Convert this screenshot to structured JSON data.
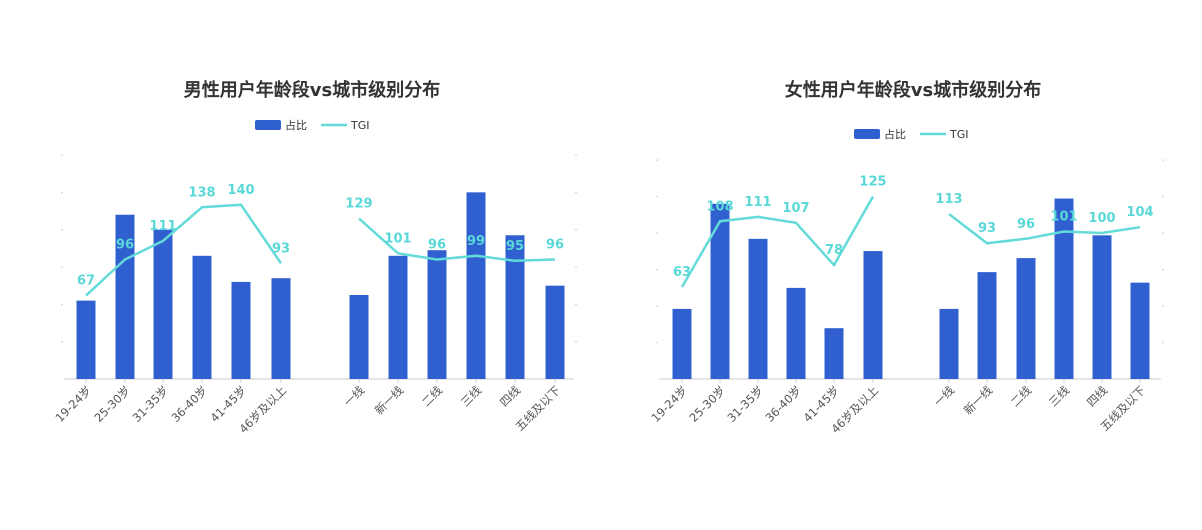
{
  "colors": {
    "bar": "#3060d0",
    "line": "#62dbd9",
    "axis": "#cccccc",
    "label": "#5ad8d8"
  },
  "chart_data": [
    {
      "type": "bar",
      "title": "男性用户年龄段vs城市级别分布",
      "legend": [
        "占比",
        "TGI"
      ],
      "legend_position": "top-center",
      "categories": [
        "19-24岁",
        "25-30岁",
        "31-35岁",
        "36-40岁",
        "41-45岁",
        "46岁及以上",
        "一线",
        "新一线",
        "二线",
        "三线",
        "四线",
        "五线及以下"
      ],
      "series": [
        {
          "name": "占比",
          "type": "bar",
          "values": [
            42,
            88,
            80,
            66,
            52,
            54,
            45,
            66,
            69,
            100,
            77,
            50
          ]
        },
        {
          "name": "TGI",
          "type": "line",
          "values": [
            67,
            96,
            111,
            138,
            140,
            93,
            129,
            101,
            96,
            99,
            95,
            96
          ]
        }
      ],
      "ylim_bar": [
        0,
        120
      ],
      "ylim_line": [
        0,
        180
      ],
      "line_groups": [
        [
          0,
          5
        ],
        [
          6,
          11
        ]
      ],
      "grid": false
    },
    {
      "type": "bar",
      "title": "女性用户年龄段vs城市级别分布",
      "legend": [
        "占比",
        "TGI"
      ],
      "legend_position": "top-center",
      "categories": [
        "19-24岁",
        "25-30岁",
        "31-35岁",
        "36-40岁",
        "41-45岁",
        "46岁及以上",
        "一线",
        "新一线",
        "二线",
        "三线",
        "四线",
        "五线及以下"
      ],
      "series": [
        {
          "name": "占比",
          "type": "bar",
          "values": [
            40,
            100,
            80,
            52,
            29,
            73,
            40,
            61,
            69,
            103,
            82,
            55
          ]
        },
        {
          "name": "TGI",
          "type": "line",
          "values": [
            63,
            108,
            111,
            107,
            78,
            125,
            113,
            93,
            96,
            101,
            100,
            104
          ]
        }
      ],
      "ylim_bar": [
        0,
        125
      ],
      "ylim_line": [
        0,
        150
      ],
      "line_groups": [
        [
          0,
          5
        ],
        [
          6,
          11
        ]
      ],
      "grid": false
    }
  ]
}
